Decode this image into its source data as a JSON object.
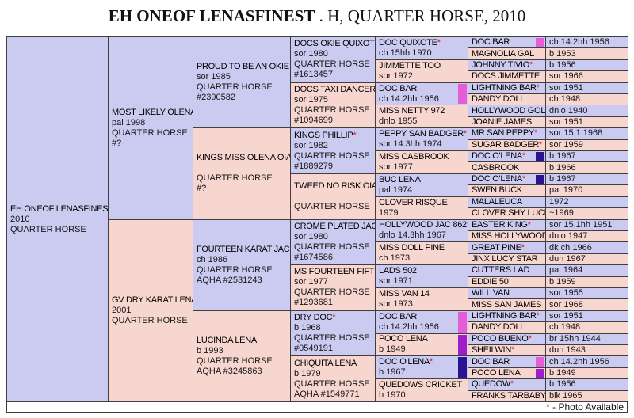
{
  "title": {
    "name": "EH ONEOF LENASFINEST",
    "suffix": " . H, QUARTER HORSE, 2010"
  },
  "footer": {
    "asterisk": "*",
    "label": " - Photo Available"
  },
  "colors": {
    "male_bg": "#cbcbf1",
    "female_bg": "#f7d6d0",
    "border": "#3f3f3f",
    "link_blue": "#3a34c4",
    "link_purple": "#8c2ab5",
    "red": "#cc2222",
    "chip_magenta": "#e55ed6",
    "chip_purple": "#9c1fc9",
    "chip_dark": "#2a1392"
  },
  "subject": {
    "name": "EH ONEOF LENASFINEST",
    "asterisk": "",
    "details": "2010\nQUARTER HORSE",
    "sex": "m",
    "link": "blue",
    "chip": null
  },
  "gen2": [
    {
      "name": "MOST LIKELY OLENA",
      "asterisk": "*",
      "details": "pal 1998\nQUARTER HORSE\n#?",
      "sex": "m",
      "link": "purple",
      "chip": null
    },
    {
      "name": "GV DRY KARAT LENA",
      "asterisk": "",
      "details": "2001\nQUARTER HORSE",
      "sex": "f",
      "link": "purple",
      "chip": null
    }
  ],
  "gen3": [
    {
      "name": "PROUD TO BE AN OKIE",
      "asterisk": "",
      "details": "sor 1985\nQUARTER HORSE\n#2390582",
      "sex": "m",
      "link": "blue",
      "chip": null
    },
    {
      "name": "KINGS MISS OLENA OIAS",
      "asterisk": "",
      "details": "\nQUARTER HORSE\n#?",
      "sex": "f",
      "link": "purple",
      "chip": null
    },
    {
      "name": "FOURTEEN KARAT JAC",
      "asterisk": "",
      "details": "ch 1986\nQUARTER HORSE\nAQHA #2531243",
      "sex": "m",
      "link": "purple",
      "chip": null
    },
    {
      "name": "LUCINDA LENA",
      "asterisk": "",
      "details": "b 1993\nQUARTER HORSE\nAQHA #3245863",
      "sex": "f",
      "link": "purple",
      "chip": null
    }
  ],
  "gen4": [
    {
      "name": "DOCS OKIE QUIXOTE",
      "asterisk": "*",
      "details": "sor 1980\nQUARTER HORSE\n#1613457",
      "sex": "m",
      "link": "purple",
      "chip": null
    },
    {
      "name": "DOCS TAXI DANCER",
      "asterisk": "*",
      "details": "sor 1975\nQUARTER HORSE\n#1094699",
      "sex": "f",
      "link": "purple",
      "chip": null
    },
    {
      "name": "KINGS PHILLIP",
      "asterisk": "*",
      "details": "sor 1982\nQUARTER HORSE\n#1889279",
      "sex": "m",
      "link": "blue",
      "chip": null
    },
    {
      "name": "TWEED NO RISK OIAS",
      "asterisk": "",
      "details": "\nQUARTER HORSE",
      "sex": "f",
      "link": "purple",
      "chip": null
    },
    {
      "name": "CROME PLATED JAC",
      "asterisk": "*",
      "details": "sor 1980\nQUARTER HORSE\n#1674586",
      "sex": "m",
      "link": "purple",
      "chip": null
    },
    {
      "name": "MS FOURTEEN FIFTY",
      "asterisk": "",
      "details": "sor 1977\nQUARTER HORSE\n#1293681",
      "sex": "f",
      "link": "purple",
      "chip": null
    },
    {
      "name": "DRY DOC",
      "asterisk": "*",
      "details": "b 1968\nQUARTER HORSE\n#0549191",
      "sex": "m",
      "link": "purple",
      "chip": null
    },
    {
      "name": "CHIQUITA LENA",
      "asterisk": "",
      "details": "b 1979\nQUARTER HORSE\nAQHA #1549771",
      "sex": "f",
      "link": "purple",
      "chip": null
    }
  ],
  "gen5": [
    {
      "name": "DOC QUIXOTE",
      "asterisk": "*",
      "details": "ch 15hh 1970",
      "sex": "m",
      "link": "blue",
      "chip": null
    },
    {
      "name": "JIMMETTE TOO",
      "asterisk": "",
      "details": "sor 1972",
      "sex": "f",
      "link": "purple",
      "chip": null
    },
    {
      "name": "DOC BAR",
      "asterisk": "",
      "details": "ch 14.2hh 1956",
      "sex": "m",
      "link": "blue",
      "chip": "magenta"
    },
    {
      "name": "MISS NETTY 972",
      "asterisk": "",
      "details": "dnlo 1955",
      "sex": "f",
      "link": "purple",
      "chip": null
    },
    {
      "name": "PEPPY SAN BADGER",
      "asterisk": "*",
      "details": "sor 14.3hh 1974",
      "sex": "m",
      "link": "blue",
      "chip": null
    },
    {
      "name": "MISS CASBROOK",
      "asterisk": "",
      "details": "sor 1977",
      "sex": "f",
      "link": "purple",
      "chip": null
    },
    {
      "name": "BUC LENA",
      "asterisk": "",
      "details": "pal 1974",
      "sex": "m",
      "link": "blue",
      "chip": null
    },
    {
      "name": "CLOVER RISQUE",
      "asterisk": "",
      "details": "1979",
      "sex": "f",
      "link": "purple",
      "chip": null
    },
    {
      "name": "HOLLYWOOD JAC 862",
      "asterisk": "*",
      "details": "dnlo 14.3hh 1967",
      "sex": "m",
      "link": "blue",
      "chip": null
    },
    {
      "name": "MISS DOLL PINE",
      "asterisk": "",
      "details": "ch 1973",
      "sex": "f",
      "link": "purple",
      "chip": null
    },
    {
      "name": "LADS 502",
      "asterisk": "",
      "details": "sor 1971",
      "sex": "m",
      "link": "blue",
      "chip": null
    },
    {
      "name": "MISS VAN 14",
      "asterisk": "",
      "details": "sor 1973",
      "sex": "f",
      "link": "purple",
      "chip": null
    },
    {
      "name": "DOC BAR",
      "asterisk": "",
      "details": "ch 14.2hh 1956",
      "sex": "m",
      "link": "blue",
      "chip": "magenta"
    },
    {
      "name": "POCO LENA",
      "asterisk": "",
      "details": "b 1949",
      "sex": "f",
      "link": "purple",
      "chip": "purple"
    },
    {
      "name": "DOC O'LENA",
      "asterisk": "*",
      "details": "b 1967",
      "sex": "m",
      "link": "blue",
      "chip": "dark"
    },
    {
      "name": "QUEDOWS CRICKET",
      "asterisk": "",
      "details": "b 1970",
      "sex": "f",
      "link": "purple",
      "chip": null
    }
  ],
  "gen6": [
    {
      "name": "DOC BAR",
      "asterisk": "",
      "value": "ch 14.2hh 1956",
      "sex": "m",
      "link": "blue",
      "chip": "magenta"
    },
    {
      "name": "MAGNOLIA GAL",
      "asterisk": "",
      "value": "b 1953",
      "sex": "f",
      "link": "purple",
      "chip": null
    },
    {
      "name": "JOHNNY TIVIO",
      "asterisk": "*",
      "value": "b 1956",
      "sex": "m",
      "link": "blue",
      "chip": null
    },
    {
      "name": "DOCS JIMMETTE",
      "asterisk": "",
      "value": "sor 1966",
      "sex": "f",
      "link": "purple",
      "chip": null
    },
    {
      "name": "LIGHTNING BAR",
      "asterisk": "*",
      "value": "sor 1951",
      "sex": "m",
      "link": "blue",
      "chip": null
    },
    {
      "name": "DANDY DOLL",
      "asterisk": "",
      "value": "ch 1948",
      "sex": "f",
      "link": "purple",
      "chip": null
    },
    {
      "name": "HOLLYWOOD GOLD",
      "asterisk": "*",
      "value": "dnlo 1940",
      "sex": "m",
      "link": "blue",
      "chip": null
    },
    {
      "name": "JOANIE JAMES",
      "asterisk": "",
      "value": "sor 1951",
      "sex": "f",
      "link": "purple",
      "chip": null
    },
    {
      "name": "MR SAN PEPPY",
      "asterisk": "*",
      "value": "sor 15.1 1968",
      "sex": "m",
      "link": "blue",
      "chip": null
    },
    {
      "name": "SUGAR BADGER",
      "asterisk": "*",
      "value": "sor 1959",
      "sex": "f",
      "link": "purple",
      "chip": null
    },
    {
      "name": "DOC O'LENA",
      "asterisk": "*",
      "value": "b 1967",
      "sex": "m",
      "link": "blue",
      "chip": "dark"
    },
    {
      "name": "CASBROOK",
      "asterisk": "",
      "value": "b 1966",
      "sex": "f",
      "link": "purple",
      "chip": null
    },
    {
      "name": "DOC O'LENA",
      "asterisk": "*",
      "value": "b 1967",
      "sex": "m",
      "link": "blue",
      "chip": "dark"
    },
    {
      "name": "SWEN BUCK",
      "asterisk": "",
      "value": "pal 1970",
      "sex": "f",
      "link": "purple",
      "chip": null
    },
    {
      "name": "MALALEUCA",
      "asterisk": "",
      "value": "1972",
      "sex": "m",
      "link": "blue",
      "chip": null
    },
    {
      "name": "CLOVER SHY LUCK",
      "asterisk": "",
      "value": "~1969",
      "sex": "f",
      "link": "purple",
      "chip": null
    },
    {
      "name": "EASTER KING",
      "asterisk": "*",
      "value": "sor 15.1hh 1951",
      "sex": "m",
      "link": "blue",
      "chip": null
    },
    {
      "name": "MISS HOLLYWOOD",
      "asterisk": "",
      "value": "dnlo 1947",
      "sex": "f",
      "link": "purple",
      "chip": null
    },
    {
      "name": "GREAT PINE",
      "asterisk": "*",
      "value": "dk ch 1966",
      "sex": "m",
      "link": "blue",
      "chip": null
    },
    {
      "name": "JINX LUCY STAR",
      "asterisk": "",
      "value": "dun 1967",
      "sex": "f",
      "link": "purple",
      "chip": null
    },
    {
      "name": "CUTTERS LAD",
      "asterisk": "",
      "value": "pal 1964",
      "sex": "m",
      "link": "blue",
      "chip": null
    },
    {
      "name": "EDDIE 50",
      "asterisk": "",
      "value": "b 1959",
      "sex": "f",
      "link": "purple",
      "chip": null
    },
    {
      "name": "WILL VAN",
      "asterisk": "",
      "value": "sor 1955",
      "sex": "m",
      "link": "blue",
      "chip": null
    },
    {
      "name": "MISS SAN JAMES",
      "asterisk": "",
      "value": "sor 1968",
      "sex": "f",
      "link": "purple",
      "chip": null
    },
    {
      "name": "LIGHTNING BAR",
      "asterisk": "*",
      "value": "sor 1951",
      "sex": "m",
      "link": "blue",
      "chip": null
    },
    {
      "name": "DANDY DOLL",
      "asterisk": "",
      "value": "ch 1948",
      "sex": "f",
      "link": "purple",
      "chip": null
    },
    {
      "name": "POCO BUENO",
      "asterisk": "*",
      "value": "br 15hh 1944",
      "sex": "m",
      "link": "blue",
      "chip": null
    },
    {
      "name": "SHEILWIN",
      "asterisk": "*",
      "value": "dun 1943",
      "sex": "f",
      "link": "purple",
      "chip": null
    },
    {
      "name": "DOC BAR",
      "asterisk": "",
      "value": "ch 14.2hh 1956",
      "sex": "m",
      "link": "blue",
      "chip": "magenta"
    },
    {
      "name": "POCO LENA",
      "asterisk": "",
      "value": "b 1949",
      "sex": "f",
      "link": "purple",
      "chip": "purple"
    },
    {
      "name": "QUEDOW",
      "asterisk": "*",
      "value": "b 1956",
      "sex": "m",
      "link": "blue",
      "chip": null
    },
    {
      "name": "FRANKS TARBABY",
      "asterisk": "",
      "value": "blk 1965",
      "sex": "f",
      "link": "purple",
      "chip": null
    }
  ]
}
